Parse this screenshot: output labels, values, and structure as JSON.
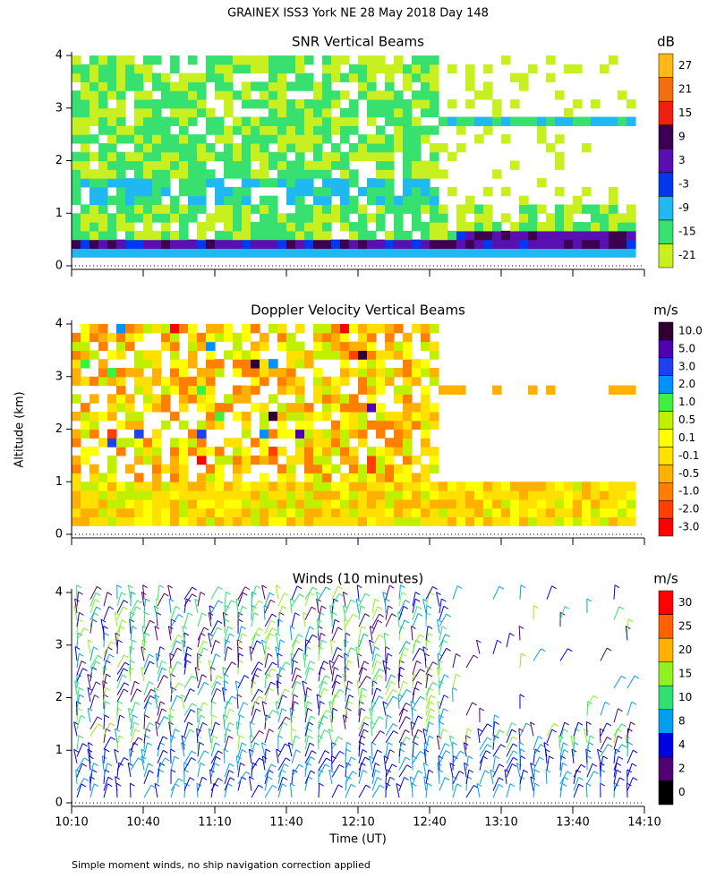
{
  "title": "GRAINEX ISS3 York NE  28 May 2018 Day 148",
  "y_label": "Altitude (km)",
  "x_label": "Time (UT)",
  "footnote": "Simple moment winds, no ship navigation correction applied",
  "chart_data": [
    {
      "type": "heatmap",
      "title": "SNR Vertical Beams",
      "colorbar_unit": "dB",
      "colorbar_levels": [
        -21,
        -15,
        -9,
        -3,
        3,
        9,
        15,
        21,
        27
      ],
      "colorbar_colors": [
        "#c8f020",
        "#38e070",
        "#20b8f0",
        "#0038f0",
        "#5810b0",
        "#3c0050",
        "#f02010",
        "#f07010",
        "#ffb818"
      ],
      "xlim": [
        610,
        850
      ],
      "ylim": [
        0,
        4
      ],
      "yticks": [
        0,
        1,
        2,
        3,
        4
      ]
    },
    {
      "type": "heatmap",
      "title": "Doppler Velocity Vertical Beams",
      "colorbar_unit": "m/s",
      "colorbar_levels": [
        {
          "value": -3,
          "label": "-3.0"
        },
        {
          "value": -2,
          "label": "-2.0"
        },
        {
          "value": -1,
          "label": "-1.0"
        },
        -0.5,
        -0.1,
        0.1,
        0.5,
        {
          "value": 1,
          "label": "1.0"
        },
        {
          "value": 2,
          "label": "2.0"
        },
        {
          "value": 3,
          "label": "3.0"
        },
        {
          "value": 5,
          "label": "5.0"
        },
        {
          "value": 10,
          "label": "10.0"
        }
      ],
      "colorbar_colors": [
        "#ff0000",
        "#ff4000",
        "#ff8000",
        "#ffb000",
        "#ffe000",
        "#ffff00",
        "#c0f000",
        "#40f040",
        "#0090ff",
        "#2040f0",
        "#5000b0",
        "#300030"
      ],
      "xlim": [
        610,
        850
      ],
      "ylim": [
        0,
        4
      ],
      "yticks": [
        0,
        1,
        2,
        3,
        4
      ]
    },
    {
      "type": "barbs",
      "title": "Winds (10 minutes)",
      "colorbar_unit": "m/s",
      "colorbar_levels": [
        0,
        2,
        4,
        8,
        10,
        15,
        20,
        25,
        30
      ],
      "colorbar_colors": [
        "#000000",
        "#500070",
        "#0000e0",
        "#00a0f0",
        "#30e070",
        "#90f020",
        "#ffb000",
        "#ff6000",
        "#ff0000"
      ],
      "xlim": [
        610,
        850
      ],
      "ylim": [
        0,
        4
      ],
      "yticks": [
        0,
        1,
        2,
        3,
        4
      ],
      "xticks": [
        {
          "value": 610,
          "label": "10:10"
        },
        {
          "value": 640,
          "label": "10:40"
        },
        {
          "value": 670,
          "label": "11:10"
        },
        {
          "value": 700,
          "label": "11:40"
        },
        {
          "value": 730,
          "label": "12:10"
        },
        {
          "value": 760,
          "label": "12:40"
        },
        {
          "value": 790,
          "label": "13:10"
        },
        {
          "value": 820,
          "label": "13:40"
        },
        {
          "value": 850,
          "label": "14:10"
        }
      ]
    }
  ]
}
